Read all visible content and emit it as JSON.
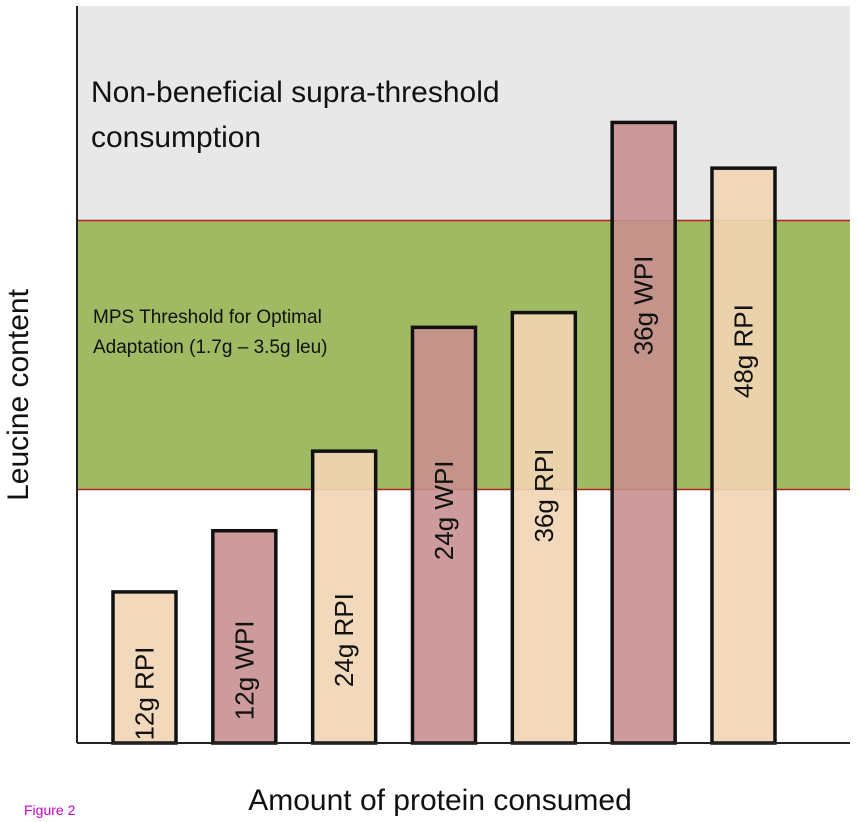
{
  "chart_data": {
    "type": "bar",
    "title": "",
    "xlabel": "Amount of protein consumed",
    "ylabel": "Leucine content",
    "ylim": [
      0,
      100
    ],
    "categories": [
      "12g RPI",
      "12g WPI",
      "24g RPI",
      "24g WPI",
      "36g RPI",
      "36g WPI",
      "48g RPI"
    ],
    "values": [
      20.5,
      28.8,
      39.6,
      56.4,
      58.4,
      84.2,
      78.0
    ],
    "bar_types": [
      "RPI",
      "WPI",
      "RPI",
      "WPI",
      "RPI",
      "WPI",
      "RPI"
    ],
    "zones": {
      "threshold": {
        "range": [
          34.4,
          70.9
        ],
        "lines": [
          "MPS Threshold for Optimal",
          "Adaptation (1.7g – 3.5g leu)"
        ]
      },
      "supra": {
        "range": [
          70.9,
          100
        ],
        "lines": [
          "Non-beneficial supra-threshold",
          "consumption"
        ]
      }
    },
    "colors": {
      "RPI": "#f2d5b4",
      "WPI": "#c89090",
      "threshold_zone": "#9fba62",
      "supra_zone": "#e8e8e9",
      "zone_line": "#b22222",
      "bar_border": "#111111"
    },
    "figure_label": "Figure 2"
  }
}
